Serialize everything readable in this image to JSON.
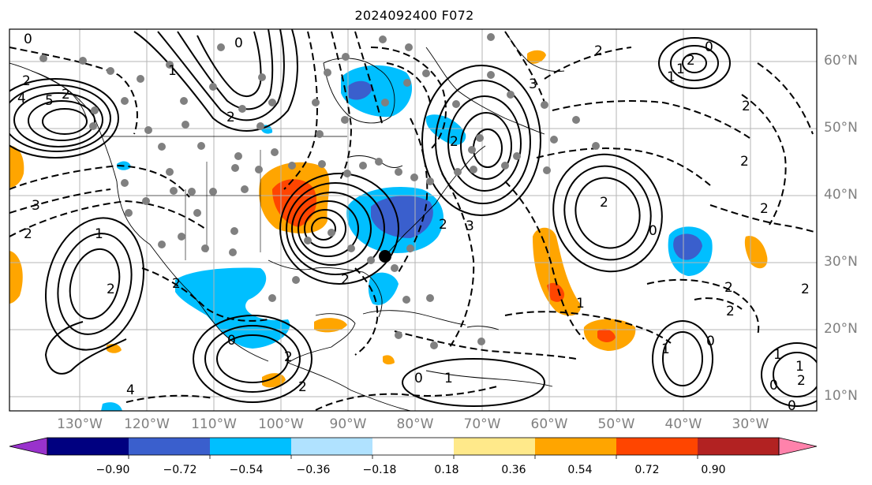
{
  "title": "2024092400 F072",
  "lat_labels": [
    "60°N",
    "50°N",
    "40°N",
    "30°N",
    "20°N",
    "10°N"
  ],
  "lon_labels": [
    "130°W",
    "120°W",
    "110°W",
    "100°W",
    "90°W",
    "80°W",
    "70°W",
    "60°W",
    "50°W",
    "40°W",
    "30°W"
  ],
  "colorbar": {
    "ticks": [
      "−0.90",
      "−0.72",
      "−0.54",
      "−0.36",
      "−0.18",
      "0.18",
      "0.36",
      "0.54",
      "0.72",
      "0.90"
    ],
    "colors": [
      "#9932cc",
      "#000080",
      "#3a5fcd",
      "#00bfff",
      "#b0e2ff",
      "#ffffff",
      "#ffe98a",
      "#ffa500",
      "#ff4500",
      "#b22222",
      "#ff82ab"
    ]
  },
  "contour_labels": [
    "0",
    "2",
    "4",
    "5",
    "2",
    "1",
    "2",
    "0",
    "1",
    "2",
    "2",
    "3",
    "4",
    "2",
    "2",
    "0",
    "2",
    "1",
    "2",
    "3",
    "2",
    "1",
    "0",
    "2",
    "2",
    "1",
    "0",
    "2",
    "1",
    "2",
    "1",
    "3",
    "2",
    "2",
    "0",
    "1",
    "2",
    "2",
    "0",
    "0",
    "1",
    "2",
    "0",
    "2",
    "2"
  ]
}
